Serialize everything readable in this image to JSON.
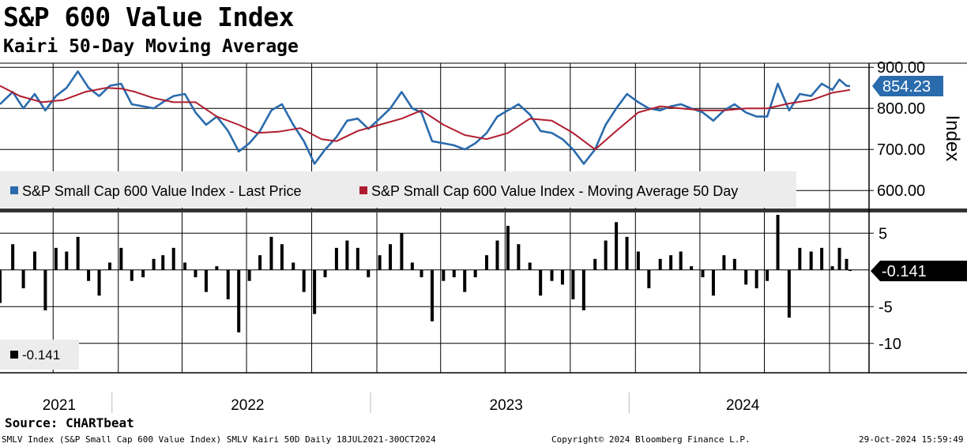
{
  "title": "S&P 600 Value Index",
  "subtitle": "Kairi 50-Day Moving Average",
  "source": "Source: CHARTbeat",
  "footer": {
    "left": "SMLV Index (S&P Small Cap 600 Value Index) SMLV Kairi 50D  Daily 18JUL2021-30OCT2024",
    "center": "Copyright© 2024 Bloomberg Finance L.P.",
    "right": "29-Oct-2024 15:59:49"
  },
  "colors": {
    "price": "#2a6bad",
    "ma": "#b01c2e",
    "kairi": "#000000",
    "grid": "#000000"
  },
  "chart_data": [
    {
      "type": "line",
      "ylabel": "Index",
      "ylim": [
        560,
        910
      ],
      "yticks": [
        "900.00",
        "800.00",
        "700.00",
        "600.00"
      ],
      "x_range": [
        "2021-07-18",
        "2024-10-30"
      ],
      "legend": {
        "placement": "bottom-left",
        "entries": [
          "S&P Small Cap 600 Value Index - Last Price",
          "S&P Small Cap 600 Value Index - Moving Average 50 Day"
        ]
      },
      "last_value_label": "854.23",
      "series": [
        {
          "name": "S&P Small Cap 600 Value Index - Last Price",
          "points": [
            [
              "2021-07-18",
              810
            ],
            [
              "2021-08-05",
              840
            ],
            [
              "2021-08-20",
              800
            ],
            [
              "2021-09-05",
              835
            ],
            [
              "2021-09-20",
              795
            ],
            [
              "2021-10-05",
              830
            ],
            [
              "2021-10-20",
              850
            ],
            [
              "2021-11-05",
              890
            ],
            [
              "2021-11-20",
              850
            ],
            [
              "2021-12-05",
              830
            ],
            [
              "2021-12-20",
              855
            ],
            [
              "2022-01-05",
              860
            ],
            [
              "2022-01-20",
              810
            ],
            [
              "2022-02-05",
              805
            ],
            [
              "2022-02-20",
              800
            ],
            [
              "2022-03-05",
              815
            ],
            [
              "2022-03-20",
              830
            ],
            [
              "2022-04-05",
              835
            ],
            [
              "2022-04-20",
              790
            ],
            [
              "2022-05-05",
              760
            ],
            [
              "2022-05-20",
              780
            ],
            [
              "2022-06-05",
              745
            ],
            [
              "2022-06-20",
              695
            ],
            [
              "2022-07-05",
              715
            ],
            [
              "2022-07-20",
              745
            ],
            [
              "2022-08-05",
              795
            ],
            [
              "2022-08-20",
              810
            ],
            [
              "2022-09-05",
              760
            ],
            [
              "2022-09-20",
              720
            ],
            [
              "2022-10-05",
              665
            ],
            [
              "2022-10-20",
              700
            ],
            [
              "2022-11-05",
              730
            ],
            [
              "2022-11-20",
              770
            ],
            [
              "2022-12-05",
              775
            ],
            [
              "2022-12-20",
              750
            ],
            [
              "2023-01-05",
              775
            ],
            [
              "2023-01-20",
              800
            ],
            [
              "2023-02-05",
              840
            ],
            [
              "2023-02-20",
              800
            ],
            [
              "2023-03-05",
              790
            ],
            [
              "2023-03-20",
              720
            ],
            [
              "2023-04-05",
              715
            ],
            [
              "2023-04-20",
              710
            ],
            [
              "2023-05-05",
              700
            ],
            [
              "2023-05-20",
              715
            ],
            [
              "2023-06-05",
              740
            ],
            [
              "2023-06-20",
              780
            ],
            [
              "2023-07-05",
              795
            ],
            [
              "2023-07-20",
              810
            ],
            [
              "2023-08-05",
              785
            ],
            [
              "2023-08-20",
              745
            ],
            [
              "2023-09-05",
              740
            ],
            [
              "2023-09-20",
              725
            ],
            [
              "2023-10-05",
              700
            ],
            [
              "2023-10-20",
              665
            ],
            [
              "2023-11-05",
              700
            ],
            [
              "2023-11-20",
              760
            ],
            [
              "2023-12-05",
              800
            ],
            [
              "2023-12-20",
              835
            ],
            [
              "2024-01-05",
              815
            ],
            [
              "2024-01-20",
              800
            ],
            [
              "2024-02-05",
              795
            ],
            [
              "2024-02-20",
              805
            ],
            [
              "2024-03-05",
              810
            ],
            [
              "2024-03-20",
              800
            ],
            [
              "2024-04-05",
              790
            ],
            [
              "2024-04-20",
              770
            ],
            [
              "2024-05-05",
              795
            ],
            [
              "2024-05-20",
              810
            ],
            [
              "2024-06-05",
              790
            ],
            [
              "2024-06-20",
              780
            ],
            [
              "2024-07-05",
              780
            ],
            [
              "2024-07-20",
              860
            ],
            [
              "2024-08-05",
              795
            ],
            [
              "2024-08-20",
              835
            ],
            [
              "2024-09-05",
              830
            ],
            [
              "2024-09-20",
              860
            ],
            [
              "2024-10-05",
              845
            ],
            [
              "2024-10-15",
              870
            ],
            [
              "2024-10-25",
              855
            ],
            [
              "2024-10-30",
              854.23
            ]
          ]
        },
        {
          "name": "S&P Small Cap 600 Value Index - Moving Average 50 Day",
          "points": [
            [
              "2021-07-18",
              855
            ],
            [
              "2021-08-15",
              830
            ],
            [
              "2021-09-15",
              815
            ],
            [
              "2021-10-15",
              820
            ],
            [
              "2021-11-15",
              840
            ],
            [
              "2021-12-15",
              850
            ],
            [
              "2022-01-05",
              848
            ],
            [
              "2022-01-25",
              840
            ],
            [
              "2022-02-20",
              825
            ],
            [
              "2022-03-20",
              815
            ],
            [
              "2022-04-20",
              815
            ],
            [
              "2022-05-20",
              780
            ],
            [
              "2022-06-20",
              760
            ],
            [
              "2022-07-15",
              740
            ],
            [
              "2022-08-15",
              743
            ],
            [
              "2022-09-15",
              752
            ],
            [
              "2022-10-15",
              725
            ],
            [
              "2022-11-05",
              720
            ],
            [
              "2022-12-05",
              745
            ],
            [
              "2023-01-05",
              760
            ],
            [
              "2023-02-05",
              775
            ],
            [
              "2023-03-05",
              795
            ],
            [
              "2023-04-05",
              760
            ],
            [
              "2023-05-05",
              735
            ],
            [
              "2023-06-05",
              725
            ],
            [
              "2023-07-05",
              740
            ],
            [
              "2023-08-05",
              775
            ],
            [
              "2023-09-05",
              770
            ],
            [
              "2023-10-05",
              740
            ],
            [
              "2023-11-05",
              700
            ],
            [
              "2023-12-05",
              745
            ],
            [
              "2024-01-05",
              790
            ],
            [
              "2024-02-05",
              805
            ],
            [
              "2024-03-05",
              800
            ],
            [
              "2024-04-05",
              795
            ],
            [
              "2024-05-05",
              795
            ],
            [
              "2024-06-05",
              800
            ],
            [
              "2024-07-05",
              800
            ],
            [
              "2024-08-05",
              812
            ],
            [
              "2024-09-05",
              820
            ],
            [
              "2024-10-05",
              838
            ],
            [
              "2024-10-30",
              845
            ]
          ]
        }
      ]
    },
    {
      "type": "bar",
      "ylim": [
        -14,
        7.5
      ],
      "yticks": [
        "5",
        "-5",
        "-10"
      ],
      "x_range": [
        "2021-07-18",
        "2024-10-30"
      ],
      "legend": {
        "placement": "bottom-left",
        "entries": [
          "-0.141"
        ]
      },
      "last_value_label": "-0.141",
      "series": [
        {
          "name": "-0.141",
          "points": [
            [
              "2021-07-18",
              -4.5
            ],
            [
              "2021-08-05",
              3.5
            ],
            [
              "2021-08-20",
              -2.5
            ],
            [
              "2021-09-05",
              2.5
            ],
            [
              "2021-09-20",
              -5.5
            ],
            [
              "2021-10-05",
              3
            ],
            [
              "2021-10-20",
              2.5
            ],
            [
              "2021-11-05",
              4.5
            ],
            [
              "2021-11-20",
              -1.5
            ],
            [
              "2021-12-05",
              -3.5
            ],
            [
              "2021-12-20",
              1
            ],
            [
              "2022-01-05",
              3
            ],
            [
              "2022-01-20",
              -1.5
            ],
            [
              "2022-02-05",
              -1
            ],
            [
              "2022-02-20",
              1.5
            ],
            [
              "2022-03-05",
              2
            ],
            [
              "2022-03-20",
              3
            ],
            [
              "2022-04-05",
              1
            ],
            [
              "2022-04-20",
              -1
            ],
            [
              "2022-05-05",
              -3
            ],
            [
              "2022-05-20",
              0.5
            ],
            [
              "2022-06-05",
              -4
            ],
            [
              "2022-06-20",
              -8.5
            ],
            [
              "2022-07-05",
              -1.5
            ],
            [
              "2022-07-20",
              2
            ],
            [
              "2022-08-05",
              4.5
            ],
            [
              "2022-08-20",
              3.5
            ],
            [
              "2022-09-05",
              1
            ],
            [
              "2022-09-20",
              -3
            ],
            [
              "2022-10-05",
              -6
            ],
            [
              "2022-10-20",
              -1
            ],
            [
              "2022-11-05",
              3
            ],
            [
              "2022-11-20",
              4
            ],
            [
              "2022-12-05",
              3
            ],
            [
              "2022-12-20",
              -1
            ],
            [
              "2023-01-05",
              2
            ],
            [
              "2023-01-20",
              3.5
            ],
            [
              "2023-02-05",
              5
            ],
            [
              "2023-02-20",
              1
            ],
            [
              "2023-03-05",
              -1
            ],
            [
              "2023-03-20",
              -7
            ],
            [
              "2023-04-05",
              -1.5
            ],
            [
              "2023-04-20",
              -1
            ],
            [
              "2023-05-05",
              -3
            ],
            [
              "2023-05-20",
              -1
            ],
            [
              "2023-06-05",
              2
            ],
            [
              "2023-06-20",
              4
            ],
            [
              "2023-07-05",
              6
            ],
            [
              "2023-07-20",
              3.5
            ],
            [
              "2023-08-05",
              1
            ],
            [
              "2023-08-20",
              -3.5
            ],
            [
              "2023-09-05",
              -1.5
            ],
            [
              "2023-09-20",
              -2
            ],
            [
              "2023-10-05",
              -4
            ],
            [
              "2023-10-20",
              -5.5
            ],
            [
              "2023-11-05",
              1.5
            ],
            [
              "2023-11-20",
              4
            ],
            [
              "2023-12-05",
              6.5
            ],
            [
              "2023-12-20",
              4.5
            ],
            [
              "2024-01-05",
              2.5
            ],
            [
              "2024-01-20",
              -2.5
            ],
            [
              "2024-02-05",
              1.5
            ],
            [
              "2024-02-20",
              2
            ],
            [
              "2024-03-05",
              2.5
            ],
            [
              "2024-03-20",
              0.5
            ],
            [
              "2024-04-05",
              -1
            ],
            [
              "2024-04-20",
              -3.5
            ],
            [
              "2024-05-05",
              2
            ],
            [
              "2024-05-20",
              1.5
            ],
            [
              "2024-06-05",
              -2
            ],
            [
              "2024-06-20",
              -2.5
            ],
            [
              "2024-07-05",
              -1.5
            ],
            [
              "2024-07-20",
              7.5
            ],
            [
              "2024-08-05",
              -6.5
            ],
            [
              "2024-08-20",
              3
            ],
            [
              "2024-09-05",
              2.5
            ],
            [
              "2024-09-20",
              3
            ],
            [
              "2024-10-05",
              0.5
            ],
            [
              "2024-10-15",
              3
            ],
            [
              "2024-10-25",
              1.5
            ],
            [
              "2024-10-30",
              -0.141
            ]
          ]
        }
      ]
    }
  ],
  "x_axis": {
    "labels": [
      "2021",
      "2022",
      "2023",
      "2024"
    ],
    "year_starts": [
      "2022-01-01",
      "2023-01-01",
      "2024-01-01"
    ],
    "quarter_starts": [
      "2021-10-01",
      "2022-04-01",
      "2022-07-01",
      "2022-10-01",
      "2023-04-01",
      "2023-07-01",
      "2023-10-01",
      "2024-04-01",
      "2024-07-01",
      "2024-10-01"
    ]
  }
}
